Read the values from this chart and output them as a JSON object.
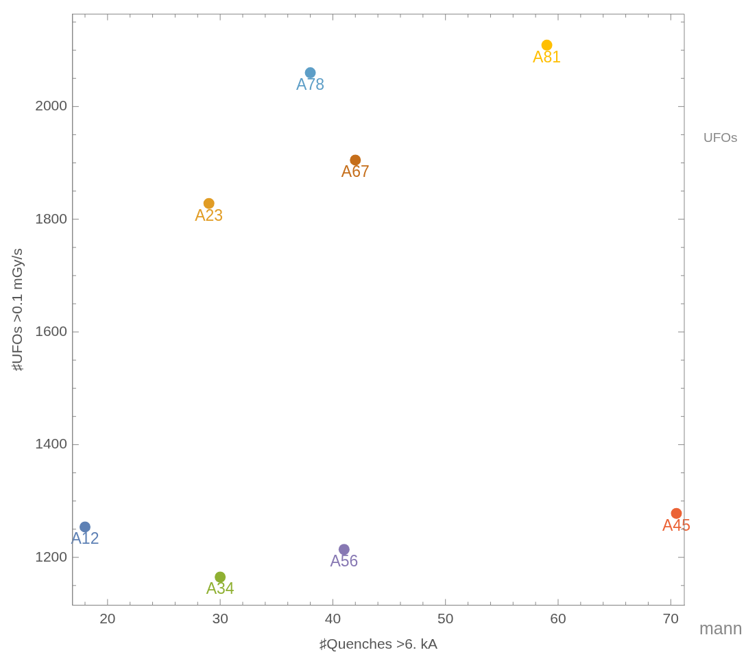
{
  "chart_data": {
    "type": "scatter",
    "xlabel": "♯Quenches >6. kA",
    "ylabel": "♯UFOs >0.1 mGy/s",
    "xlim": [
      16.9,
      71.2
    ],
    "ylim": [
      1115,
      2164
    ],
    "xticks": [
      {
        "value": 18,
        "label": null
      },
      20,
      {
        "value": 22,
        "label": null
      },
      {
        "value": 24,
        "label": null
      },
      {
        "value": 26,
        "label": null
      },
      {
        "value": 28,
        "label": null
      },
      30,
      {
        "value": 32,
        "label": null
      },
      {
        "value": 34,
        "label": null
      },
      {
        "value": 36,
        "label": null
      },
      {
        "value": 38,
        "label": null
      },
      40,
      {
        "value": 42,
        "label": null
      },
      {
        "value": 44,
        "label": null
      },
      {
        "value": 46,
        "label": null
      },
      {
        "value": 48,
        "label": null
      },
      50,
      {
        "value": 52,
        "label": null
      },
      {
        "value": 54,
        "label": null
      },
      {
        "value": 56,
        "label": null
      },
      {
        "value": 58,
        "label": null
      },
      60,
      {
        "value": 62,
        "label": null
      },
      {
        "value": 64,
        "label": null
      },
      {
        "value": 66,
        "label": null
      },
      {
        "value": 68,
        "label": null
      },
      70
    ],
    "yticks": [
      {
        "value": 1150,
        "label": null
      },
      1200,
      {
        "value": 1250,
        "label": null
      },
      {
        "value": 1300,
        "label": null
      },
      {
        "value": 1350,
        "label": null
      },
      1400,
      {
        "value": 1450,
        "label": null
      },
      {
        "value": 1500,
        "label": null
      },
      {
        "value": 1550,
        "label": null
      },
      1600,
      {
        "value": 1650,
        "label": null
      },
      {
        "value": 1700,
        "label": null
      },
      {
        "value": 1750,
        "label": null
      },
      1800,
      {
        "value": 1850,
        "label": null
      },
      {
        "value": 1900,
        "label": null
      },
      {
        "value": 1950,
        "label": null
      },
      2000,
      {
        "value": 2050,
        "label": null
      },
      {
        "value": 2100,
        "label": null
      },
      {
        "value": 2150,
        "label": null
      }
    ],
    "grid": false,
    "legend": false,
    "marker": "circle",
    "series": [
      {
        "name": "A12",
        "color": "#5e81b5",
        "x": [
          18
        ],
        "values": [
          1254
        ]
      },
      {
        "name": "A23",
        "color": "#e19c24",
        "x": [
          29
        ],
        "values": [
          1828
        ]
      },
      {
        "name": "A34",
        "color": "#8fb032",
        "x": [
          30
        ],
        "values": [
          1165
        ]
      },
      {
        "name": "A45",
        "color": "#eb6235",
        "x": [
          70.5
        ],
        "values": [
          1278
        ]
      },
      {
        "name": "A56",
        "color": "#8778b3",
        "x": [
          41
        ],
        "values": [
          1214
        ]
      },
      {
        "name": "A67",
        "color": "#c56e1a",
        "x": [
          42
        ],
        "values": [
          1905
        ]
      },
      {
        "name": "A78",
        "color": "#5d9ec7",
        "x": [
          38
        ],
        "values": [
          2060
        ]
      },
      {
        "name": "A81",
        "color": "#ffbf00",
        "x": [
          59
        ],
        "values": [
          2109
        ]
      }
    ],
    "annotations": [
      "UFOs",
      "mann"
    ]
  }
}
